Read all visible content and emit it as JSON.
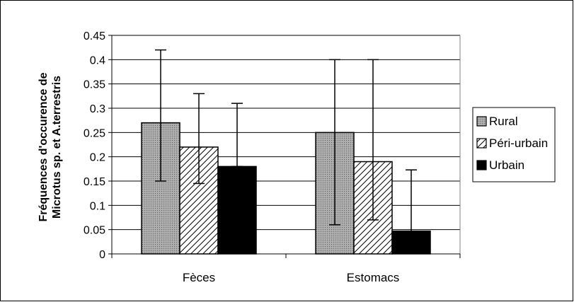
{
  "chart_data": {
    "type": "bar",
    "title": "",
    "xlabel": "",
    "ylabel_lines": [
      "Fréquences d'occurence de",
      "Microtus sp. et A.terrestris"
    ],
    "categories": [
      "Fèces",
      "Estomacs"
    ],
    "ylim": [
      0,
      0.45
    ],
    "yticks": [
      0,
      0.05,
      0.1,
      0.15,
      0.2,
      0.25,
      0.3,
      0.35,
      0.4,
      0.45
    ],
    "ytick_labels": [
      "0",
      "0.05",
      "0.1",
      "0.15",
      "0.2",
      "0.25",
      "0.3",
      "0.35",
      "0.4",
      "0.45"
    ],
    "grid": true,
    "legend_position": "right",
    "series": [
      {
        "name": "Rural",
        "pattern": "dotted-gray",
        "color": "#999999",
        "values": [
          0.27,
          0.25
        ],
        "err_low": [
          0.15,
          0.06
        ],
        "err_high": [
          0.42,
          0.4
        ]
      },
      {
        "name": "Péri-urbain",
        "pattern": "diagonal-hatch",
        "color": "#ffffff",
        "values": [
          0.22,
          0.19
        ],
        "err_low": [
          0.145,
          0.07
        ],
        "err_high": [
          0.33,
          0.4
        ]
      },
      {
        "name": "Urbain",
        "pattern": "solid",
        "color": "#000000",
        "values": [
          0.18,
          0.047
        ],
        "err_low": [
          0.18,
          0.047
        ],
        "err_high": [
          0.31,
          0.173
        ]
      }
    ]
  }
}
